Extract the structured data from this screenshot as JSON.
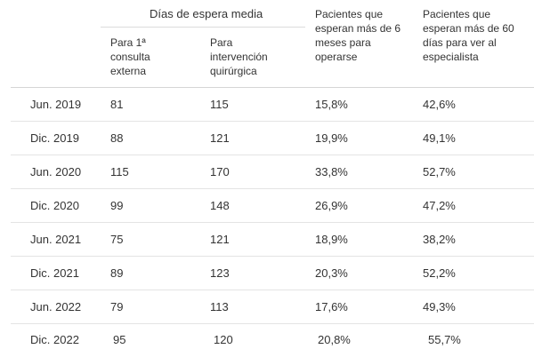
{
  "header": {
    "group_title": "Días de espera media",
    "first_consult_lines": [
      "Para 1ª",
      "consulta",
      "externa"
    ],
    "surgery_lines": [
      "Para",
      "intervención",
      "quirúrgica"
    ],
    "six_months_lines": [
      "Pacientes que",
      "esperan más de 6",
      "meses para",
      "operarse"
    ],
    "sixty_days_lines": [
      "Pacientes que",
      "esperan más de 60",
      "días para ver al",
      "especialista"
    ]
  },
  "rows": [
    {
      "period": "Jun. 2019",
      "first_consult": "81",
      "surgery": "115",
      "over_six_months": "15,8%",
      "over_sixty_days": "42,6%"
    },
    {
      "period": "Dic. 2019",
      "first_consult": "88",
      "surgery": "121",
      "over_six_months": "19,9%",
      "over_sixty_days": "49,1%"
    },
    {
      "period": "Jun. 2020",
      "first_consult": "115",
      "surgery": "170",
      "over_six_months": "33,8%",
      "over_sixty_days": "52,7%"
    },
    {
      "period": "Dic. 2020",
      "first_consult": "99",
      "surgery": "148",
      "over_six_months": "26,9%",
      "over_sixty_days": "47,2%"
    },
    {
      "period": "Jun. 2021",
      "first_consult": "75",
      "surgery": "121",
      "over_six_months": "18,9%",
      "over_sixty_days": "38,2%"
    },
    {
      "period": "Dic. 2021",
      "first_consult": "89",
      "surgery": "123",
      "over_six_months": "20,3%",
      "over_sixty_days": "52,2%"
    },
    {
      "period": "Jun. 2022",
      "first_consult": "79",
      "surgery": "113",
      "over_six_months": "17,6%",
      "over_sixty_days": "49,3%"
    },
    {
      "period": "Dic. 2022",
      "first_consult": "95",
      "surgery": "120",
      "over_six_months": "20,8%",
      "over_sixty_days": "55,7%"
    }
  ]
}
